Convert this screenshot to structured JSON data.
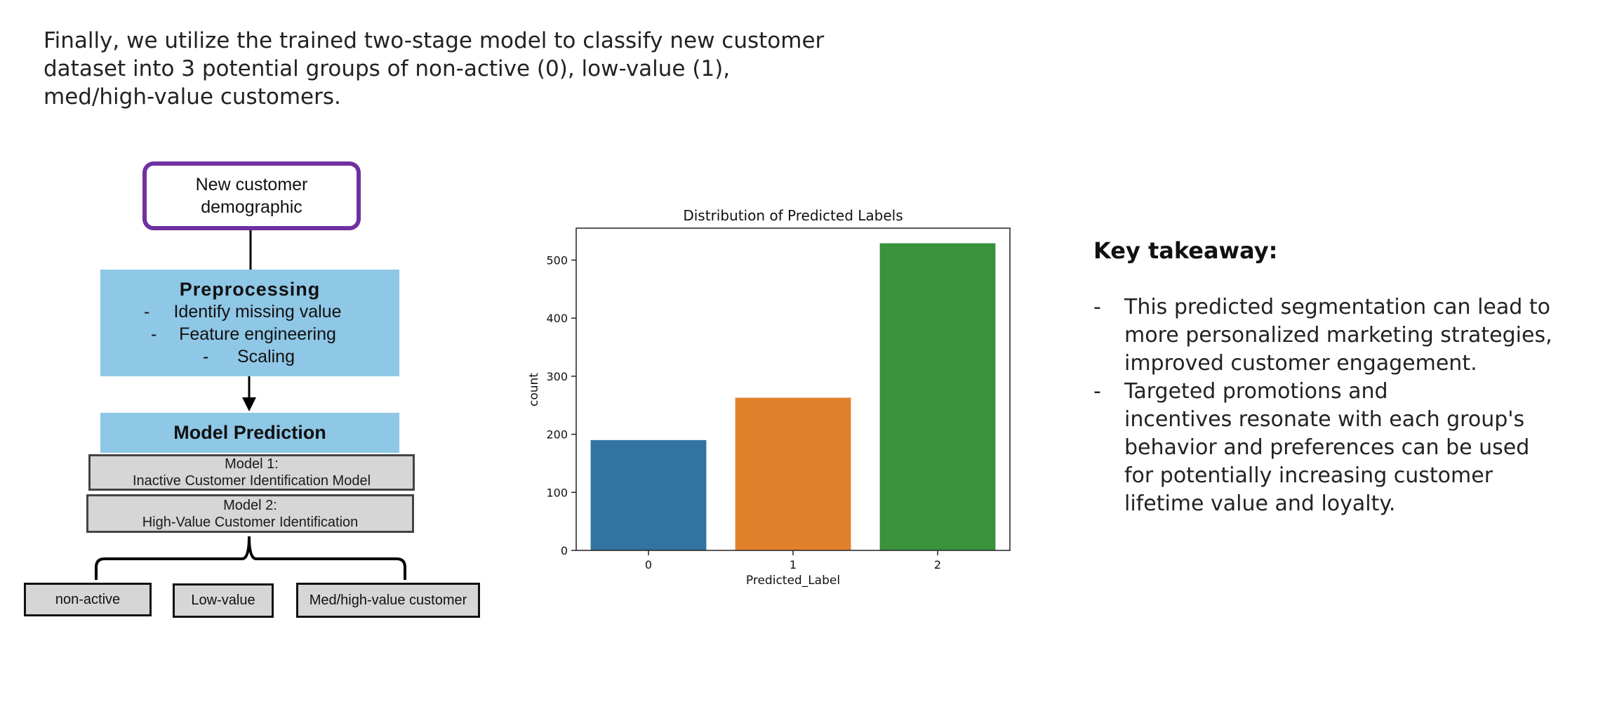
{
  "intro_text": "Finally, we utilize the trained two-stage model to classify  new customer dataset into 3 potential groups of non-active (0), low-value (1), med/high-value customers.",
  "flow": {
    "start": [
      "New customer",
      "demographic"
    ],
    "preprocessing": {
      "title": "Preprocessing",
      "steps": [
        "Identify missing value",
        "Feature engineering",
        "Scaling"
      ],
      "bullet": "-"
    },
    "prediction_title": "Model Prediction",
    "model1": [
      "Model 1:",
      "Inactive Customer Identification Model"
    ],
    "model2": [
      "Model 2:",
      "High-Value Customer Identification"
    ],
    "outputs": [
      "non-active",
      "Low-value",
      "Med/high-value customer"
    ],
    "colors": {
      "start_border": "#7030a0",
      "blue_box": "#8fc7e6",
      "grey_box": "#d6d6d6"
    }
  },
  "chart_data": {
    "type": "bar",
    "title": "Distribution of Predicted Labels",
    "xlabel": "Predicted_Label",
    "ylabel": "count",
    "categories": [
      "0",
      "1",
      "2"
    ],
    "values": [
      190,
      263,
      529
    ],
    "ylim": [
      0,
      555
    ],
    "yticks": [
      0,
      100,
      200,
      300,
      400,
      500
    ],
    "colors": [
      "#3274a1",
      "#e1812c",
      "#3a923a"
    ],
    "grid": false
  },
  "takeaway": {
    "title": "Key takeaway:",
    "bullet": "-",
    "items": [
      [
        "This predicted segmentation can lead to",
        "more personalized  marketing strategies,",
        "improved customer engagement."
      ],
      [
        "Targeted promotions and",
        "incentives  resonate with each group's",
        "behavior and preferences  can be used",
        "for potentially increasing  customer",
        "lifetime value and loyalty."
      ]
    ]
  }
}
